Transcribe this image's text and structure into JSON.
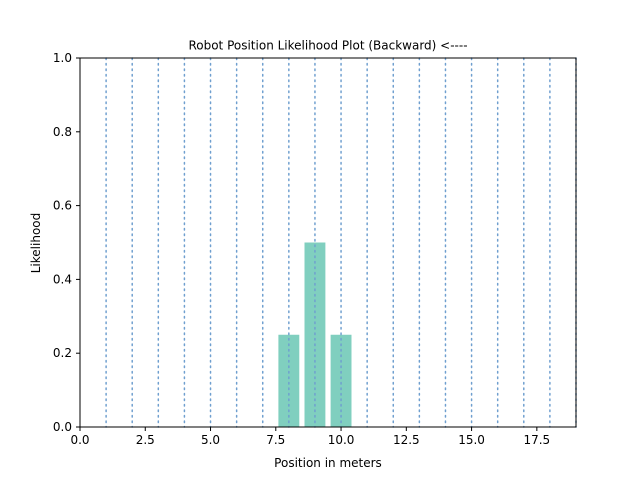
{
  "chart_data": {
    "type": "bar",
    "title": "Robot Position Likelihood Plot (Backward)  <----",
    "xlabel": "Position in meters",
    "ylabel": "Likelihood",
    "xlim": [
      0,
      19
    ],
    "ylim": [
      0,
      1.0
    ],
    "x_ticks": [
      0.0,
      2.5,
      5.0,
      7.5,
      10.0,
      12.5,
      15.0,
      17.5
    ],
    "x_tick_labels": [
      "0.0",
      "2.5",
      "5.0",
      "7.5",
      "10.0",
      "12.5",
      "15.0",
      "17.5"
    ],
    "y_ticks": [
      0.0,
      0.2,
      0.4,
      0.6,
      0.8,
      1.0
    ],
    "y_tick_labels": [
      "0.0",
      "0.2",
      "0.4",
      "0.6",
      "0.8",
      "1.0"
    ],
    "x": [
      8,
      9,
      10
    ],
    "values": [
      0.25,
      0.5,
      0.25
    ],
    "bar_width": 0.8,
    "bar_color": "#80cfbf",
    "position_lines": [
      1,
      2,
      3,
      4,
      5,
      6,
      7,
      8,
      9,
      10,
      11,
      12,
      13,
      14,
      15,
      16,
      17,
      18,
      19
    ],
    "position_line_color": "#6f9fcf",
    "position_line_style": "dotted",
    "grid": false,
    "legend": "none"
  }
}
